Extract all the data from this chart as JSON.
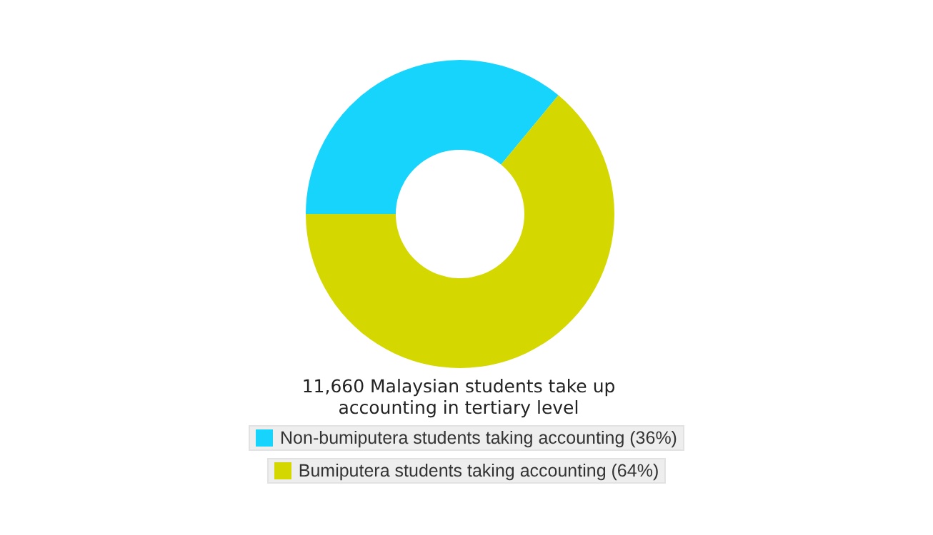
{
  "chart_data": {
    "type": "donut",
    "title": "11,660 Malaysian students take up accounting in tertiary level",
    "categories": [
      "Non-bumiputera students taking accounting (36%)",
      "Bumiputera students taking accounting (64%)"
    ],
    "values": [
      36,
      64
    ],
    "colors": [
      "#17d4fc",
      "#d4d800"
    ],
    "legend": "bottom"
  }
}
